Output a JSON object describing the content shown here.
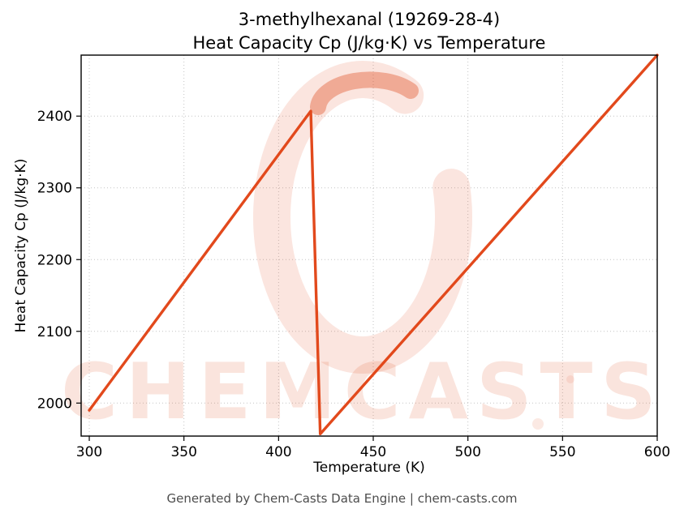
{
  "title_line1": "3-methylhexanal (19269-28-4)",
  "title_line2": "Heat Capacity Cp (J/kg·K) vs Temperature",
  "footer": "Generated by Chem-Casts Data Engine | chem-casts.com",
  "watermark": {
    "text": "CHEMCASTS",
    "color": "#e0491c"
  },
  "chart_data": {
    "type": "line",
    "title": "3-methylhexanal (19269-28-4) — Heat Capacity Cp (J/kg·K) vs Temperature",
    "xlabel": "Temperature (K)",
    "ylabel": "Heat Capacity Cp (J/kg·K)",
    "xlim": [
      295.7,
      600
    ],
    "ylim": [
      1954,
      2485
    ],
    "xticks": [
      300,
      350,
      400,
      450,
      500,
      550,
      600
    ],
    "yticks": [
      2000,
      2100,
      2200,
      2300,
      2400
    ],
    "grid": true,
    "legend": false,
    "line_color": "#e2491c",
    "series": [
      {
        "name": "Heat Capacity Cp",
        "points": [
          [
            300,
            1990
          ],
          [
            417,
            2407
          ],
          [
            422,
            1957
          ],
          [
            600,
            2485
          ]
        ]
      }
    ]
  }
}
